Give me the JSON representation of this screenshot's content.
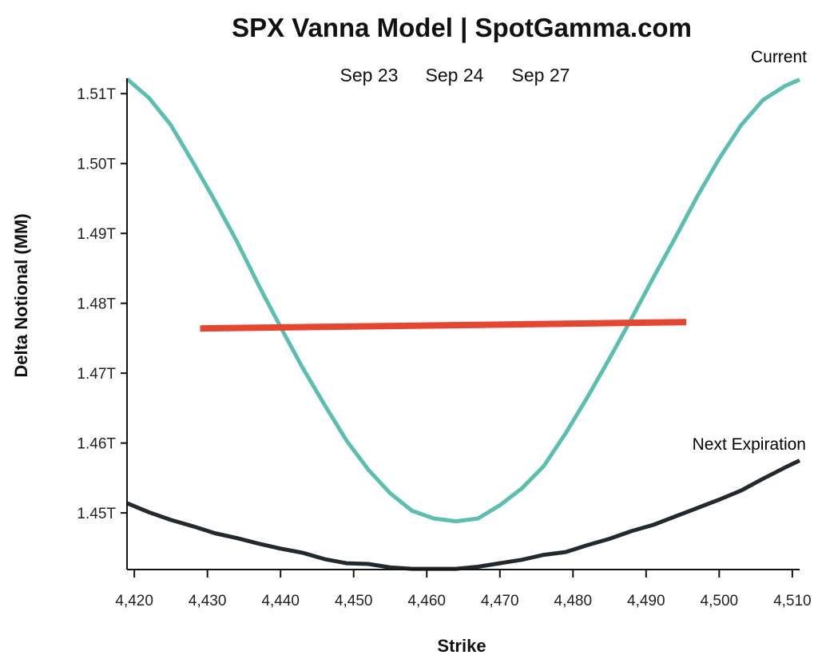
{
  "chart_data": {
    "type": "line",
    "title": "SPX Vanna Model | SpotGamma.com",
    "subtitle_dates": [
      "Sep 23",
      "Sep 24",
      "Sep 27"
    ],
    "xlabel": "Strike",
    "ylabel": "Delta Notional (MM)",
    "xlim": [
      4419,
      4511
    ],
    "ylim": [
      1.4419,
      1.5122
    ],
    "x_ticks": [
      4420,
      4430,
      4440,
      4450,
      4460,
      4470,
      4480,
      4490,
      4500,
      4510
    ],
    "x_tick_labels": [
      "4,420",
      "4,430",
      "4,440",
      "4,450",
      "4,460",
      "4,470",
      "4,480",
      "4,490",
      "4,500",
      "4,510"
    ],
    "y_ticks": [
      1.45,
      1.46,
      1.47,
      1.48,
      1.49,
      1.5,
      1.51
    ],
    "y_tick_labels": [
      "1.45T",
      "1.46T",
      "1.47T",
      "1.48T",
      "1.49T",
      "1.50T",
      "1.51T"
    ],
    "grid": false,
    "series": [
      {
        "name": "Current",
        "color": "#5bbfb0",
        "x": [
          4419,
          4422,
          4425,
          4428,
          4431,
          4434,
          4437,
          4440,
          4443,
          4446,
          4449,
          4452,
          4455,
          4458,
          4461,
          4464,
          4467,
          4470,
          4473,
          4476,
          4479,
          4482,
          4485,
          4488,
          4491,
          4494,
          4497,
          4500,
          4503,
          4506,
          4509,
          4511
        ],
        "y": [
          1.5121,
          1.5094,
          1.5055,
          1.5002,
          1.4947,
          1.4889,
          1.4826,
          1.4766,
          1.4708,
          1.4655,
          1.4604,
          1.4562,
          1.4528,
          1.4503,
          1.4492,
          1.4488,
          1.4492,
          1.4511,
          1.4535,
          1.4567,
          1.4614,
          1.4666,
          1.4721,
          1.4778,
          1.4837,
          1.4894,
          1.4953,
          1.5007,
          1.5055,
          1.5091,
          1.5111,
          1.512
        ]
      },
      {
        "name": "Next Expiration",
        "color": "#222a2e",
        "x": [
          4419,
          4422,
          4425,
          4428,
          4431,
          4434,
          4437,
          4440,
          4443,
          4446,
          4449,
          4452,
          4455,
          4458,
          4461,
          4464,
          4467,
          4470,
          4473,
          4476,
          4479,
          4482,
          4485,
          4488,
          4491,
          4494,
          4497,
          4500,
          4503,
          4506,
          4509,
          4511
        ],
        "y": [
          1.4514,
          1.4501,
          1.449,
          1.4481,
          1.4471,
          1.4464,
          1.4456,
          1.4449,
          1.4443,
          1.4434,
          1.4428,
          1.4427,
          1.4422,
          1.442,
          1.442,
          1.442,
          1.4423,
          1.4428,
          1.4433,
          1.444,
          1.4444,
          1.4454,
          1.4463,
          1.4474,
          1.4483,
          1.4495,
          1.4507,
          1.4519,
          1.4532,
          1.4549,
          1.4565,
          1.4575
        ]
      },
      {
        "name": "",
        "color": "#e8452e",
        "x": [
          4429,
          4495.5
        ],
        "y": [
          1.4764,
          1.4773
        ]
      }
    ]
  }
}
